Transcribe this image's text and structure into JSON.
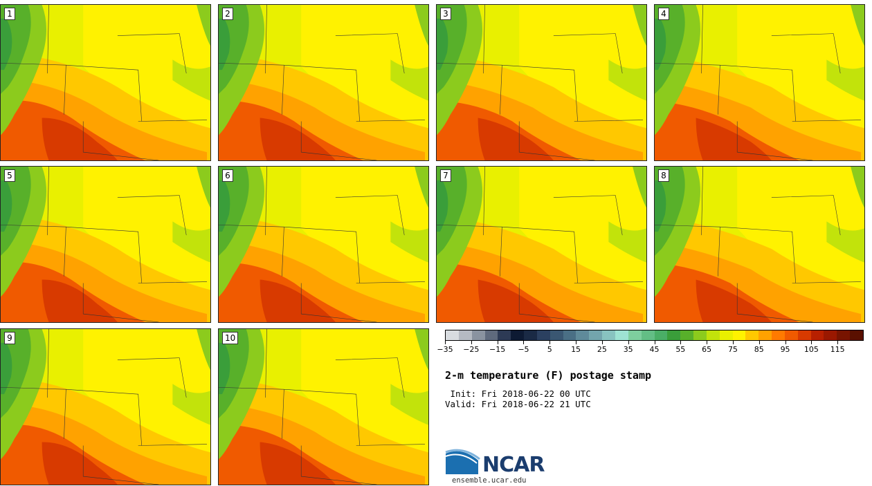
{
  "map": {
    "panels": [
      {
        "label": "1"
      },
      {
        "label": "2"
      },
      {
        "label": "3"
      },
      {
        "label": "4"
      },
      {
        "label": "5"
      },
      {
        "label": "6"
      },
      {
        "label": "7"
      },
      {
        "label": "8"
      },
      {
        "label": "9"
      },
      {
        "label": "10"
      }
    ]
  },
  "colorbar": {
    "colors": [
      "#d8dce0",
      "#b5bac2",
      "#8a93a0",
      "#5f6a7d",
      "#2d3a55",
      "#0d1a33",
      "#1a2a45",
      "#2b4060",
      "#3a5772",
      "#4a6f85",
      "#5f8a9a",
      "#73a5ad",
      "#88c3c0",
      "#9ee3d3",
      "#7ecf9e",
      "#63be85",
      "#4aae66",
      "#3a9e3a",
      "#58b02a",
      "#8ccb1d",
      "#c2e30b",
      "#e9f000",
      "#fff200",
      "#ffc800",
      "#ffa200",
      "#ff7a00",
      "#f05a00",
      "#d83a00",
      "#b82000",
      "#9a1800",
      "#781400",
      "#5a1000"
    ],
    "tick_labels": [
      "−35",
      "−25",
      "−15",
      "−5",
      "5",
      "15",
      "25",
      "35",
      "45",
      "55",
      "65",
      "75",
      "85",
      "95",
      "105",
      "115"
    ]
  },
  "title": "2-m temperature (F) postage stamp",
  "init": " Init: Fri 2018-06-22 00 UTC",
  "valid": "Valid: Fri 2018-06-22 21 UTC",
  "logo": {
    "text": "NCAR",
    "color": "#1b3d6e"
  },
  "url": "ensemble.ucar.edu"
}
